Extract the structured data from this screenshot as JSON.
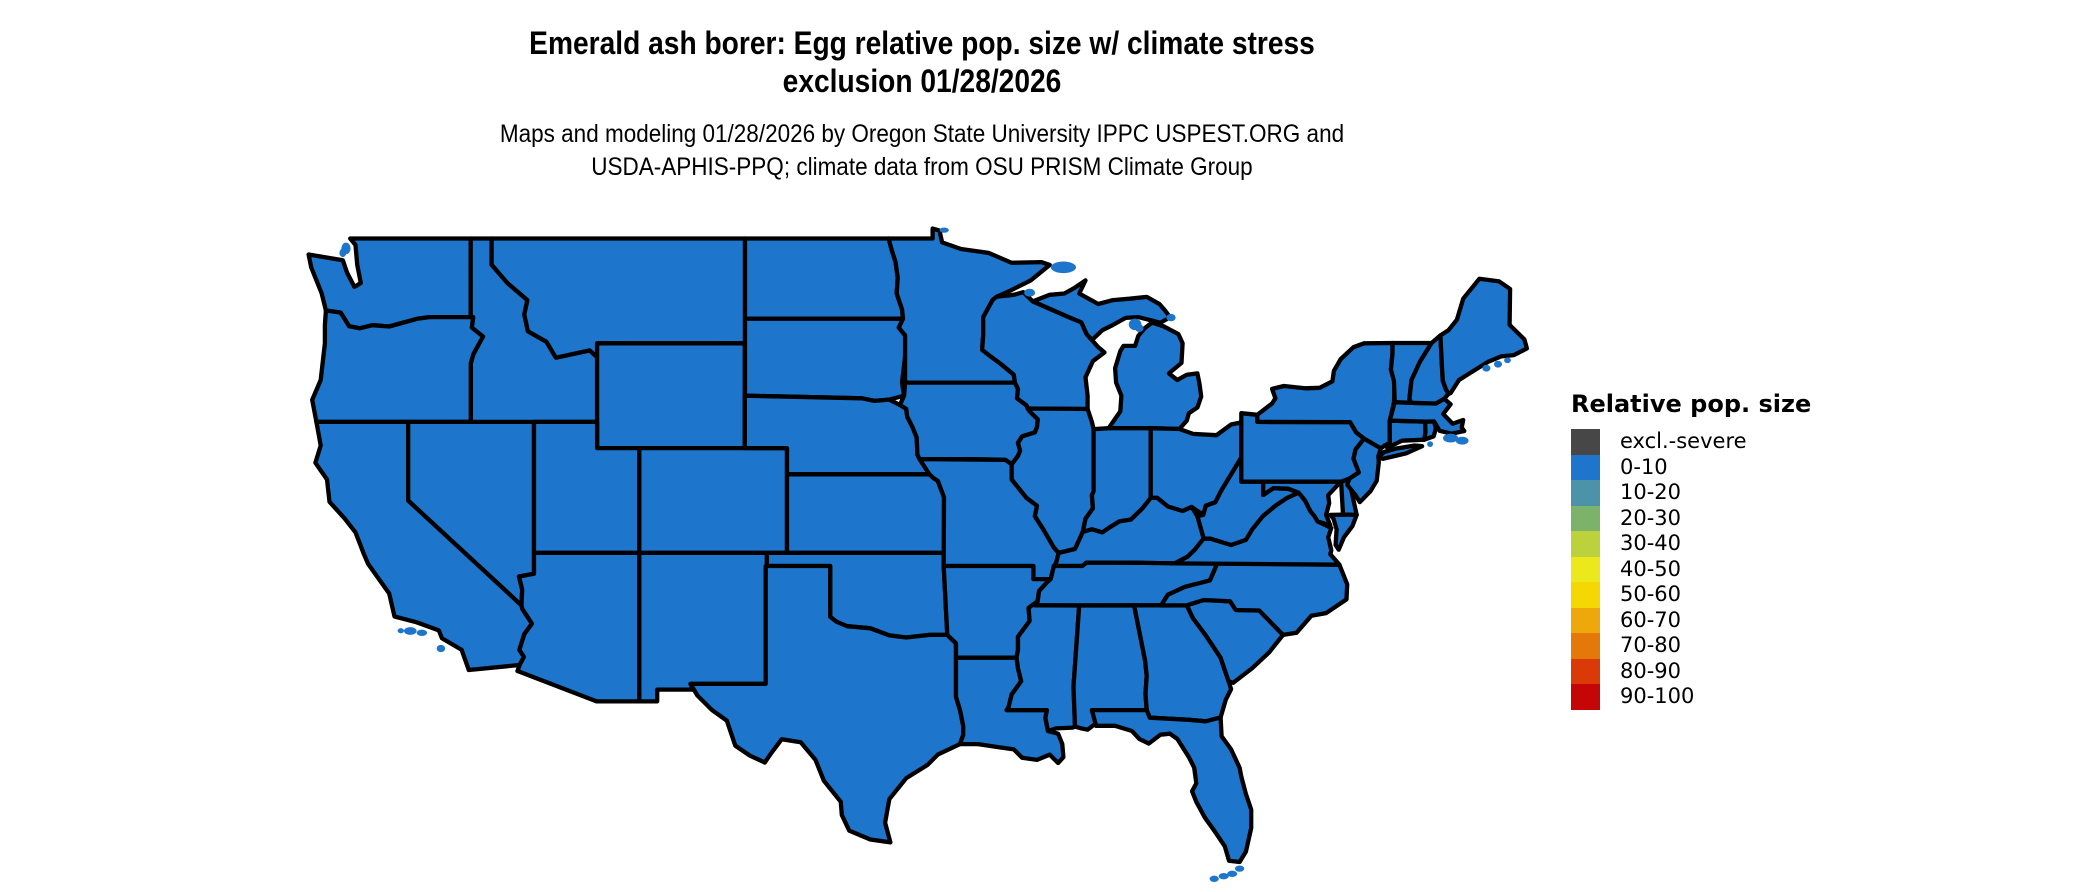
{
  "header": {
    "title_line1": "Emerald ash borer: Egg relative pop. size w/ climate stress",
    "title_line2": "exclusion 01/28/2026",
    "subtitle_line1": "Maps and modeling 01/28/2026 by Oregon State University IPPC USPEST.ORG and",
    "subtitle_line2": "USDA-APHIS-PPQ; climate data from OSU PRISM Climate Group"
  },
  "legend": {
    "title": "Relative pop. size",
    "items": [
      {
        "label": "excl.-severe",
        "color": "#474747"
      },
      {
        "label": "0-10",
        "color": "#1E76CC"
      },
      {
        "label": "10-20",
        "color": "#4C93A9"
      },
      {
        "label": "20-30",
        "color": "#7CB26A"
      },
      {
        "label": "30-40",
        "color": "#BCD23C"
      },
      {
        "label": "40-50",
        "color": "#EBE81C"
      },
      {
        "label": "50-60",
        "color": "#F5D703"
      },
      {
        "label": "60-70",
        "color": "#EFA80B"
      },
      {
        "label": "70-80",
        "color": "#E47909"
      },
      {
        "label": "80-90",
        "color": "#D93A08"
      },
      {
        "label": "90-100",
        "color": "#C40606"
      }
    ]
  },
  "map": {
    "region": "Contiguous United States",
    "unit": "state",
    "fill_category_all_states": "0-10",
    "fill_color": "#1E76CC",
    "border_color": "#000000",
    "water_color": "#FFFFFF"
  },
  "chart_data": {
    "type": "choropleth-map",
    "title": "Emerald ash borer: Egg relative pop. size w/ climate stress exclusion 01/28/2026",
    "legend_title": "Relative pop. size",
    "classes": [
      "excl.-severe",
      "0-10",
      "10-20",
      "20-30",
      "30-40",
      "40-50",
      "50-60",
      "60-70",
      "70-80",
      "80-90",
      "90-100"
    ],
    "class_colors": [
      "#474747",
      "#1E76CC",
      "#4C93A9",
      "#7CB26A",
      "#BCD23C",
      "#EBE81C",
      "#F5D703",
      "#EFA80B",
      "#E47909",
      "#D93A08",
      "#C40606"
    ],
    "observed_value_all_visible_states": "0-10"
  }
}
